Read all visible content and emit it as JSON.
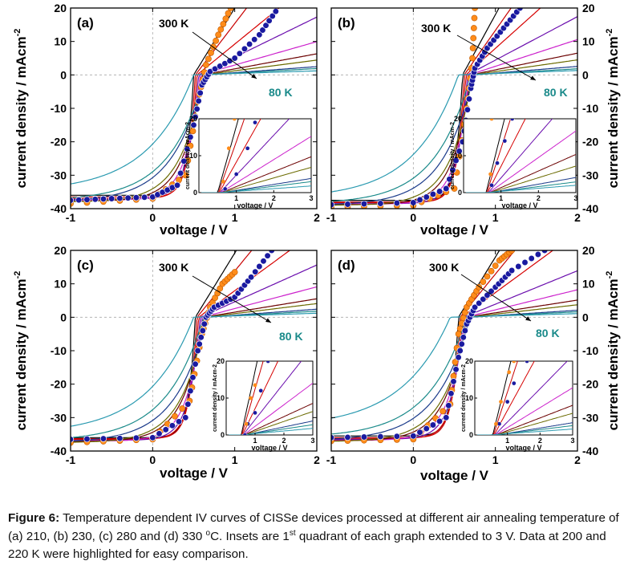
{
  "figure": {
    "caption_label": "Figure 6:",
    "caption_part1": " Temperature dependent IV curves of CISSe devices processed at different air annealing temperature of (a) 210, (b) 230, (c) 280 and (d) 330 ",
    "caption_deg": "o",
    "caption_part2": "C. Insets are 1",
    "caption_st": "st",
    "caption_part3": " quadrant of each graph extended to 3 V. Data at 200 and 220 K were highlighted for easy comparison."
  },
  "colors": {
    "temps": [
      "#000000",
      "#c80000",
      "#d60000",
      "#6a0dad",
      "#cc22cc",
      "#6b0000",
      "#6b6b00",
      "#1a3a8a",
      "#1a8a8a",
      "#2a9ab0"
    ],
    "blue_markers": "#1a1aa0",
    "orange_markers": "#ff8c1a",
    "label_teal": "#1a8a8a"
  },
  "chart_data": [
    {
      "panel": "(a)",
      "type": "line",
      "xlabel": "voltage / V",
      "ylabel": "current density / mAcm-2",
      "xlim": [
        -1,
        2
      ],
      "ylim": [
        -40,
        20
      ],
      "xticks": [
        "-1",
        "0",
        "1",
        "2"
      ],
      "yticks": [
        "-40",
        "-30",
        "-20",
        "-10",
        "0",
        "10",
        "20"
      ],
      "annotations": [
        "300 K",
        "80 K"
      ],
      "jsc": [
        -36,
        -36.5,
        -37,
        -37.2,
        -37.5,
        -37.8,
        -38,
        -38,
        -37.6,
        -35
      ],
      "voc": [
        0.5,
        0.52,
        0.54,
        0.56,
        0.58,
        0.6,
        0.62,
        0.63,
        0.64,
        0.5
      ],
      "slope": [
        40,
        32,
        20,
        12,
        7,
        4.5,
        3.2,
        1.8,
        1.4,
        0.8
      ],
      "blue_series": [
        [
          -1,
          -37.5
        ],
        [
          -0.5,
          -37
        ],
        [
          0,
          -36.5
        ],
        [
          0.3,
          -33
        ],
        [
          0.5,
          -15
        ],
        [
          0.6,
          -3
        ],
        [
          0.7,
          1
        ],
        [
          1,
          5
        ],
        [
          1.3,
          12
        ],
        [
          1.5,
          19
        ]
      ],
      "orange_series": [
        [
          -1,
          -38.5
        ],
        [
          0,
          -37
        ],
        [
          0.4,
          -30
        ],
        [
          0.55,
          -8
        ],
        [
          0.65,
          3
        ],
        [
          0.8,
          12
        ],
        [
          0.95,
          20
        ]
      ],
      "inset": {
        "xlim": [
          0,
          3
        ],
        "ylim": [
          0,
          20
        ],
        "xticks": [
          "1",
          "2",
          "3"
        ],
        "yticks": [
          "0",
          "10",
          "20"
        ],
        "xlabel": "voltage / V",
        "ylabel": "current density / mAcm-2"
      }
    },
    {
      "panel": "(b)",
      "type": "line",
      "xlabel": "voltage / V",
      "ylabel": "current density / mAcm-2",
      "xlim": [
        -1,
        2
      ],
      "ylim": [
        -40,
        20
      ],
      "xticks": [
        "-1",
        "0",
        "1",
        "2"
      ],
      "yticks": [
        "-40",
        "-30",
        "-20",
        "-10",
        "0",
        "10",
        "20"
      ],
      "annotations": [
        "300 K",
        "80 K"
      ],
      "jsc": [
        -37.5,
        -38,
        -38.2,
        -38.5,
        -38.6,
        -38.8,
        -39,
        -39,
        -38.6,
        -37
      ],
      "voc": [
        0.6,
        0.62,
        0.64,
        0.66,
        0.68,
        0.7,
        0.72,
        0.73,
        0.7,
        0.55
      ],
      "slope": [
        45,
        35,
        22,
        13,
        8,
        5,
        3.5,
        2,
        1.4,
        0.9
      ],
      "blue_series": [
        [
          -1,
          -38.8
        ],
        [
          0,
          -38.2
        ],
        [
          0.4,
          -34
        ],
        [
          0.6,
          -20
        ],
        [
          0.7,
          -4
        ],
        [
          0.75,
          2
        ],
        [
          0.9,
          8
        ],
        [
          1.1,
          14
        ],
        [
          1.3,
          20
        ]
      ],
      "orange_series": [
        [
          -1,
          -39.5
        ],
        [
          0,
          -39
        ],
        [
          0.5,
          -34
        ],
        [
          0.65,
          -10
        ],
        [
          0.72,
          5
        ],
        [
          0.75,
          20
        ]
      ],
      "inset": {
        "xlim": [
          0,
          3
        ],
        "ylim": [
          0,
          20
        ],
        "xticks": [
          "1",
          "2",
          "3"
        ],
        "yticks": [
          "0",
          "10",
          "20"
        ],
        "xlabel": "voltage / V",
        "ylabel": "current density / mAcm-2"
      }
    },
    {
      "panel": "(c)",
      "type": "line",
      "xlabel": "voltage / V",
      "ylabel": "current density / mAcm-2",
      "xlim": [
        -1,
        2
      ],
      "ylim": [
        -40,
        20
      ],
      "xticks": [
        "-1",
        "0",
        "1",
        "2"
      ],
      "yticks": [
        "-40",
        "-30",
        "-20",
        "-10",
        "0",
        "10",
        "20"
      ],
      "annotations": [
        "300 K",
        "80 K"
      ],
      "jsc": [
        -36,
        -36.3,
        -36.5,
        -36.8,
        -37,
        -37.2,
        -37.5,
        -37.5,
        -37,
        -35
      ],
      "voc": [
        0.52,
        0.54,
        0.56,
        0.58,
        0.6,
        0.62,
        0.64,
        0.66,
        0.62,
        0.5
      ],
      "slope": [
        40,
        30,
        18,
        11,
        6.5,
        4,
        3,
        1.8,
        1.3,
        0.8
      ],
      "blue_series": [
        [
          -1,
          -36.5
        ],
        [
          0,
          -36
        ],
        [
          0.4,
          -30
        ],
        [
          0.55,
          -10
        ],
        [
          0.65,
          0
        ],
        [
          0.75,
          3
        ],
        [
          1,
          6
        ],
        [
          1.2,
          12
        ],
        [
          1.45,
          20
        ]
      ],
      "orange_series": [
        [
          -1,
          -37.5
        ],
        [
          0,
          -36.5
        ],
        [
          0.45,
          -25
        ],
        [
          0.6,
          -5
        ],
        [
          0.7,
          3
        ],
        [
          0.85,
          10
        ],
        [
          1.0,
          13.5
        ]
      ],
      "inset": {
        "xlim": [
          0,
          3
        ],
        "ylim": [
          0,
          20
        ],
        "xticks": [
          "1",
          "2",
          "3"
        ],
        "yticks": [
          "0",
          "10",
          "20"
        ],
        "xlabel": "voltage / V",
        "ylabel": "current density / mAcm-2"
      }
    },
    {
      "panel": "(d)",
      "type": "line",
      "xlabel": "voltage / V",
      "ylabel": "current density / mAcm-2",
      "xlim": [
        -1,
        2
      ],
      "ylim": [
        -40,
        20
      ],
      "xticks": [
        "-1",
        "0",
        "1",
        "2"
      ],
      "yticks": [
        "-40",
        "-30",
        "-20",
        "-10",
        "0",
        "10",
        "20"
      ],
      "annotations": [
        "300 K",
        "80 K"
      ],
      "jsc": [
        -35.5,
        -36,
        -36.2,
        -36.5,
        -36.8,
        -37,
        -37.2,
        -37,
        -36,
        -33
      ],
      "voc": [
        0.55,
        0.57,
        0.59,
        0.61,
        0.63,
        0.65,
        0.67,
        0.69,
        0.65,
        0.45
      ],
      "slope": [
        40,
        30,
        18,
        10,
        6,
        3.8,
        2.8,
        1.6,
        1.2,
        0.7
      ],
      "blue_series": [
        [
          -1,
          -36
        ],
        [
          0,
          -35.5
        ],
        [
          0.4,
          -30
        ],
        [
          0.55,
          -12
        ],
        [
          0.65,
          -2
        ],
        [
          0.75,
          3
        ],
        [
          1.0,
          9
        ],
        [
          1.2,
          14
        ],
        [
          1.6,
          20
        ]
      ],
      "orange_series": [
        [
          -1,
          -37
        ],
        [
          0,
          -36.5
        ],
        [
          0.45,
          -26
        ],
        [
          0.55,
          -5
        ],
        [
          0.65,
          3
        ],
        [
          0.8,
          9
        ],
        [
          1.05,
          17
        ],
        [
          1.2,
          20
        ]
      ],
      "inset": {
        "xlim": [
          0,
          3
        ],
        "ylim": [
          0,
          20
        ],
        "xticks": [
          "1",
          "2",
          "3"
        ],
        "yticks": [
          "0",
          "10",
          "20"
        ],
        "xlabel": "voltage / V",
        "ylabel": "current density / mAcm-2"
      }
    }
  ]
}
